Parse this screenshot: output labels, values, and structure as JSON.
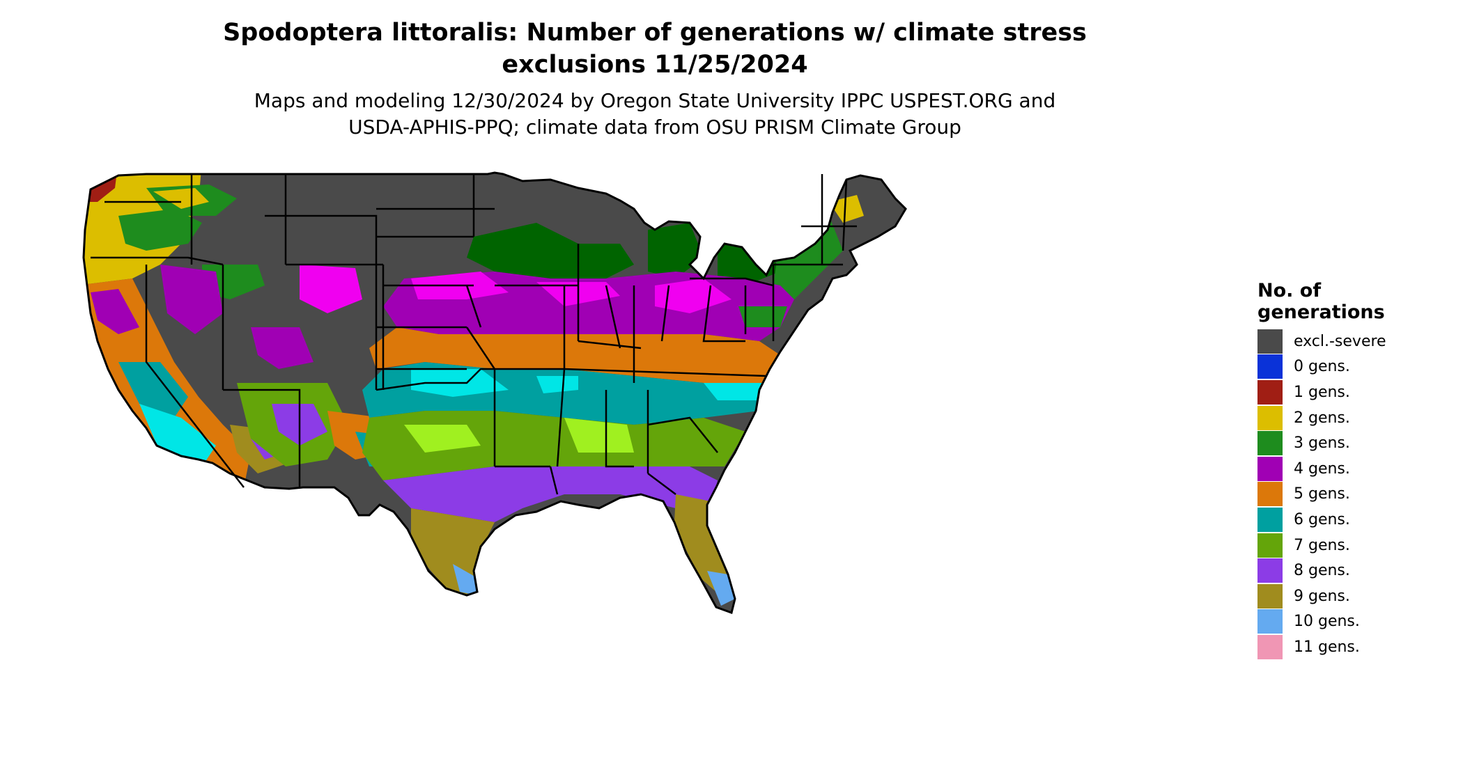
{
  "title": "Spodoptera littoralis: Number of generations w/ climate stress\nexclusions 11/25/2024",
  "subtitle": "Maps and modeling 12/30/2024 by Oregon State University IPPC USPEST.ORG and\nUSDA-APHIS-PPQ; climate data from OSU PRISM Climate Group",
  "legend": {
    "title": "No. of\ngenerations",
    "items": [
      {
        "label": "excl.-severe",
        "color": "#4a4a4a"
      },
      {
        "label": "0 gens.",
        "color": "#0a32d8"
      },
      {
        "label": "1 gens.",
        "color": "#a01e14"
      },
      {
        "label": "2 gens.",
        "color": "#dcbe00"
      },
      {
        "label": "3 gens.",
        "color": "#1e8c1e"
      },
      {
        "label": "4 gens.",
        "color": "#a000b4"
      },
      {
        "label": "5 gens.",
        "color": "#dc780a"
      },
      {
        "label": "6 gens.",
        "color": "#00a0a0"
      },
      {
        "label": "7 gens.",
        "color": "#64a50a"
      },
      {
        "label": "8 gens.",
        "color": "#8c3ce6"
      },
      {
        "label": "9 gens.",
        "color": "#a08c1e"
      },
      {
        "label": "10 gens.",
        "color": "#64aaf0"
      },
      {
        "label": "11 gens.",
        "color": "#f096b4"
      }
    ]
  },
  "map": {
    "type": "choropleth",
    "region": "Contiguous United States",
    "extra_colors": {
      "bright_magenta": "#f000f0",
      "bright_cyan": "#00e6e6",
      "lime": "#a0f020",
      "light_green": "#90e890",
      "dark_green": "#006400"
    }
  }
}
